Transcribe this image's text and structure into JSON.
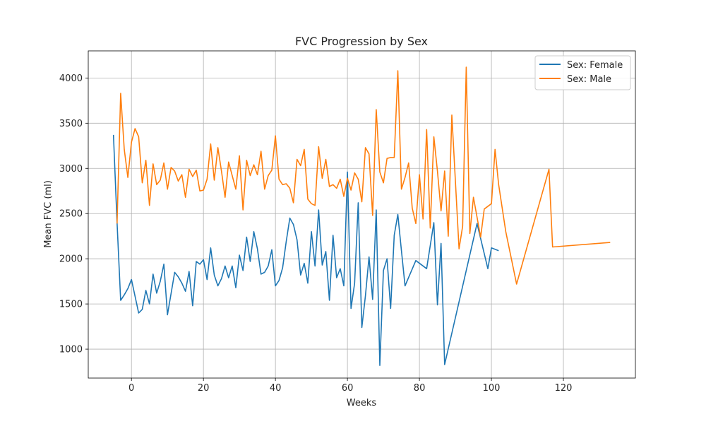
{
  "chart_data": {
    "type": "line",
    "title": "FVC Progression by Sex",
    "xlabel": "Weeks",
    "ylabel": "Mean FVC (ml)",
    "xlim": [
      -12,
      140
    ],
    "ylim": [
      680,
      4300
    ],
    "xticks": [
      0,
      20,
      40,
      60,
      80,
      100,
      120
    ],
    "yticks": [
      1000,
      1500,
      2000,
      2500,
      3000,
      3500,
      4000
    ],
    "grid": true,
    "legend_position": "upper right",
    "series": [
      {
        "name": "Sex: Female",
        "color": "#1f77b4",
        "points": [
          [
            -5,
            3370
          ],
          [
            -4,
            2400
          ],
          [
            -3,
            1540
          ],
          [
            -2,
            1600
          ],
          [
            -1,
            1670
          ],
          [
            0,
            1770
          ],
          [
            2,
            1400
          ],
          [
            3,
            1440
          ],
          [
            4,
            1650
          ],
          [
            5,
            1500
          ],
          [
            6,
            1830
          ],
          [
            7,
            1620
          ],
          [
            8,
            1750
          ],
          [
            9,
            1940
          ],
          [
            10,
            1380
          ],
          [
            12,
            1850
          ],
          [
            13,
            1800
          ],
          [
            14,
            1730
          ],
          [
            15,
            1640
          ],
          [
            16,
            1860
          ],
          [
            17,
            1480
          ],
          [
            18,
            1970
          ],
          [
            19,
            1940
          ],
          [
            20,
            1990
          ],
          [
            21,
            1770
          ],
          [
            22,
            2120
          ],
          [
            23,
            1820
          ],
          [
            24,
            1700
          ],
          [
            25,
            1780
          ],
          [
            26,
            1920
          ],
          [
            27,
            1790
          ],
          [
            28,
            1920
          ],
          [
            29,
            1680
          ],
          [
            30,
            2040
          ],
          [
            31,
            1870
          ],
          [
            32,
            2240
          ],
          [
            33,
            1970
          ],
          [
            34,
            2300
          ],
          [
            35,
            2110
          ],
          [
            36,
            1830
          ],
          [
            37,
            1850
          ],
          [
            38,
            1920
          ],
          [
            39,
            2100
          ],
          [
            40,
            1700
          ],
          [
            41,
            1760
          ],
          [
            42,
            1900
          ],
          [
            43,
            2190
          ],
          [
            44,
            2450
          ],
          [
            45,
            2380
          ],
          [
            46,
            2210
          ],
          [
            47,
            1820
          ],
          [
            48,
            1950
          ],
          [
            49,
            1730
          ],
          [
            50,
            2300
          ],
          [
            51,
            1920
          ],
          [
            52,
            2540
          ],
          [
            53,
            1930
          ],
          [
            54,
            2080
          ],
          [
            55,
            1540
          ],
          [
            56,
            2260
          ],
          [
            57,
            1790
          ],
          [
            58,
            1890
          ],
          [
            59,
            1700
          ],
          [
            60,
            2960
          ],
          [
            61,
            1450
          ],
          [
            62,
            1730
          ],
          [
            63,
            2620
          ],
          [
            64,
            1240
          ],
          [
            65,
            1590
          ],
          [
            66,
            2020
          ],
          [
            67,
            1550
          ],
          [
            68,
            2540
          ],
          [
            69,
            820
          ],
          [
            70,
            1870
          ],
          [
            71,
            2000
          ],
          [
            72,
            1450
          ],
          [
            73,
            2260
          ],
          [
            74,
            2490
          ],
          [
            75,
            2090
          ],
          [
            76,
            1700
          ],
          [
            79,
            1980
          ],
          [
            82,
            1890
          ],
          [
            84,
            2400
          ],
          [
            85,
            1490
          ],
          [
            86,
            2170
          ],
          [
            87,
            830
          ],
          [
            96,
            2390
          ],
          [
            99,
            1890
          ],
          [
            100,
            2120
          ],
          [
            102,
            2090
          ]
        ]
      },
      {
        "name": "Sex: Male",
        "color": "#ff7f0e",
        "points": [
          [
            -4,
            2390
          ],
          [
            -3,
            3830
          ],
          [
            -2,
            3210
          ],
          [
            -1,
            2900
          ],
          [
            0,
            3290
          ],
          [
            1,
            3440
          ],
          [
            2,
            3350
          ],
          [
            3,
            2840
          ],
          [
            4,
            3090
          ],
          [
            5,
            2590
          ],
          [
            6,
            3050
          ],
          [
            7,
            2820
          ],
          [
            8,
            2870
          ],
          [
            9,
            3060
          ],
          [
            10,
            2770
          ],
          [
            11,
            3010
          ],
          [
            12,
            2970
          ],
          [
            13,
            2860
          ],
          [
            14,
            2930
          ],
          [
            15,
            2680
          ],
          [
            16,
            2990
          ],
          [
            17,
            2910
          ],
          [
            18,
            2980
          ],
          [
            19,
            2750
          ],
          [
            20,
            2760
          ],
          [
            21,
            2880
          ],
          [
            22,
            3270
          ],
          [
            23,
            2870
          ],
          [
            24,
            3230
          ],
          [
            25,
            2970
          ],
          [
            26,
            2680
          ],
          [
            27,
            3070
          ],
          [
            28,
            2920
          ],
          [
            29,
            2770
          ],
          [
            30,
            3140
          ],
          [
            31,
            2540
          ],
          [
            32,
            3090
          ],
          [
            33,
            2920
          ],
          [
            34,
            3040
          ],
          [
            35,
            2930
          ],
          [
            36,
            3190
          ],
          [
            37,
            2770
          ],
          [
            38,
            2920
          ],
          [
            39,
            2980
          ],
          [
            40,
            3360
          ],
          [
            41,
            2880
          ],
          [
            42,
            2820
          ],
          [
            43,
            2830
          ],
          [
            44,
            2780
          ],
          [
            45,
            2620
          ],
          [
            46,
            3100
          ],
          [
            47,
            3030
          ],
          [
            48,
            3210
          ],
          [
            49,
            2660
          ],
          [
            50,
            2610
          ],
          [
            51,
            2590
          ],
          [
            52,
            3240
          ],
          [
            53,
            2890
          ],
          [
            54,
            3100
          ],
          [
            55,
            2800
          ],
          [
            56,
            2820
          ],
          [
            57,
            2780
          ],
          [
            58,
            2880
          ],
          [
            59,
            2690
          ],
          [
            60,
            2890
          ],
          [
            61,
            2760
          ],
          [
            62,
            2950
          ],
          [
            63,
            2880
          ],
          [
            64,
            2630
          ],
          [
            65,
            3230
          ],
          [
            66,
            3160
          ],
          [
            67,
            2480
          ],
          [
            68,
            3650
          ],
          [
            69,
            2960
          ],
          [
            70,
            2840
          ],
          [
            71,
            3110
          ],
          [
            72,
            3120
          ],
          [
            73,
            3120
          ],
          [
            74,
            4080
          ],
          [
            75,
            2770
          ],
          [
            76,
            2900
          ],
          [
            77,
            3060
          ],
          [
            78,
            2560
          ],
          [
            79,
            2390
          ],
          [
            80,
            2930
          ],
          [
            81,
            2440
          ],
          [
            82,
            3430
          ],
          [
            83,
            2340
          ],
          [
            84,
            3350
          ],
          [
            85,
            2970
          ],
          [
            86,
            2530
          ],
          [
            87,
            2970
          ],
          [
            88,
            2250
          ],
          [
            89,
            3590
          ],
          [
            91,
            2110
          ],
          [
            92,
            2360
          ],
          [
            93,
            4120
          ],
          [
            94,
            2280
          ],
          [
            95,
            2680
          ],
          [
            97,
            2240
          ],
          [
            98,
            2550
          ],
          [
            100,
            2610
          ],
          [
            101,
            3210
          ],
          [
            102,
            2820
          ],
          [
            104,
            2300
          ],
          [
            107,
            1720
          ],
          [
            116,
            2990
          ],
          [
            117,
            2130
          ],
          [
            133,
            2180
          ]
        ]
      }
    ]
  }
}
